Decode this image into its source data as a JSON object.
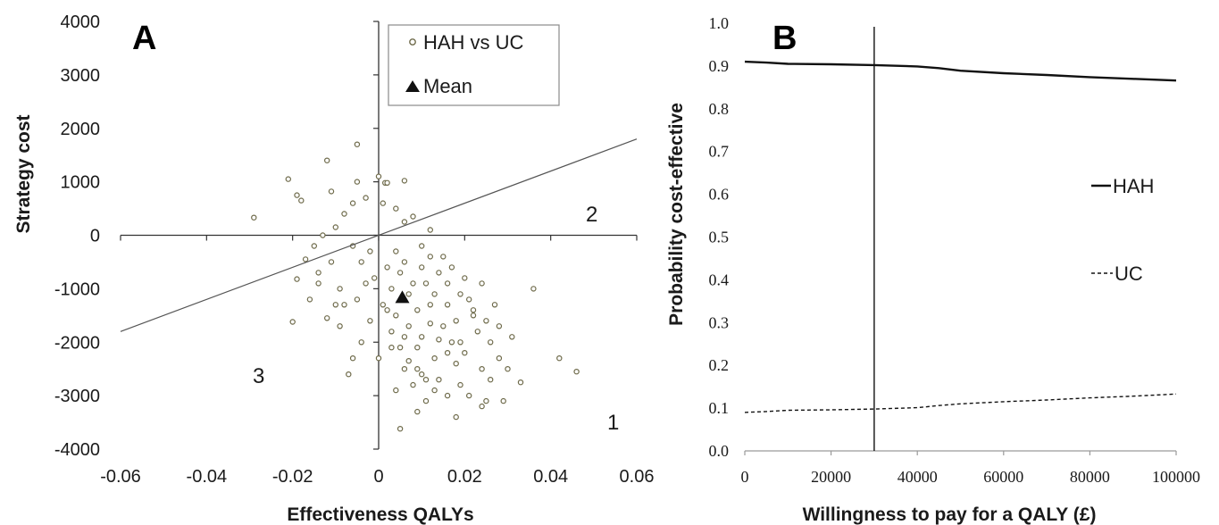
{
  "chart_data": [
    {
      "panel": "A",
      "type": "scatter",
      "xlabel": "Effectiveness QALYs",
      "ylabel": "Strategy cost",
      "xlim": [
        -0.06,
        0.06
      ],
      "ylim": [
        -4000,
        4000
      ],
      "xticks": [
        "-0.06",
        "-0.04",
        "-0.02",
        "0",
        "0.02",
        "0.04",
        "0.06"
      ],
      "yticks": [
        "4000",
        "3000",
        "2000",
        "1000",
        "0",
        "-1000",
        "-2000",
        "-3000",
        "-4000"
      ],
      "legend": {
        "scatter": "HAH vs UC",
        "mean": "Mean",
        "position": "top-right"
      },
      "mean": {
        "x": 0.0055,
        "y": -1150
      },
      "threshold_line": {
        "x1": -0.06,
        "y1": -1800,
        "x2": 0.06,
        "y2": 1800
      },
      "quadrant_labels": [
        "1",
        "2",
        "3"
      ],
      "series": [
        {
          "name": "HAH vs UC",
          "points": [
            [
              -0.029,
              330
            ],
            [
              -0.021,
              1050
            ],
            [
              -0.012,
              1400
            ],
            [
              -0.005,
              1700
            ],
            [
              -0.019,
              750
            ],
            [
              -0.018,
              650
            ],
            [
              -0.011,
              820
            ],
            [
              -0.005,
              1000
            ],
            [
              0.0,
              1100
            ],
            [
              0.0015,
              980
            ],
            [
              0.006,
              1020
            ],
            [
              0.002,
              980
            ],
            [
              -0.02,
              -1620
            ],
            [
              -0.019,
              -820
            ],
            [
              -0.016,
              -1200
            ],
            [
              -0.012,
              -1550
            ],
            [
              -0.017,
              -450
            ],
            [
              -0.014,
              -900
            ],
            [
              -0.01,
              -1300
            ],
            [
              -0.009,
              -1700
            ],
            [
              0.002,
              -1400
            ],
            [
              0.006,
              -1900
            ],
            [
              0.009,
              -2100
            ],
            [
              0.012,
              -1300
            ],
            [
              0.015,
              -1700
            ],
            [
              0.019,
              -2000
            ],
            [
              0.022,
              -1500
            ],
            [
              0.024,
              -2500
            ],
            [
              0.014,
              -2700
            ],
            [
              0.011,
              -3100
            ],
            [
              0.009,
              -3300
            ],
            [
              0.005,
              -3620
            ],
            [
              0.018,
              -3400
            ],
            [
              0.021,
              -3000
            ],
            [
              0.024,
              -3200
            ],
            [
              0.029,
              -3100
            ],
            [
              0.033,
              -2750
            ],
            [
              0.036,
              -1000
            ],
            [
              0.042,
              -2300
            ],
            [
              0.046,
              -2550
            ],
            [
              0.026,
              -2700
            ],
            [
              0.028,
              -1700
            ],
            [
              0.018,
              -2400
            ],
            [
              0.004,
              -2900
            ],
            [
              0.01,
              -2600
            ],
            [
              0.016,
              -3000
            ],
            [
              0.02,
              -2200
            ],
            [
              0.023,
              -1800
            ],
            [
              0.027,
              -1300
            ],
            [
              0.02,
              -800
            ],
            [
              0.017,
              -600
            ],
            [
              0.015,
              -400
            ],
            [
              0.01,
              -200
            ],
            [
              0.012,
              100
            ],
            [
              0.008,
              350
            ],
            [
              0.006,
              250
            ],
            [
              0.004,
              500
            ],
            [
              0.001,
              600
            ],
            [
              -0.003,
              700
            ],
            [
              -0.006,
              600
            ],
            [
              -0.008,
              400
            ],
            [
              -0.01,
              150
            ],
            [
              -0.013,
              0
            ],
            [
              -0.015,
              -200
            ],
            [
              -0.004,
              -500
            ],
            [
              -0.001,
              -800
            ],
            [
              0.003,
              -1000
            ],
            [
              0.005,
              -700
            ],
            [
              0.007,
              -1100
            ],
            [
              0.009,
              -1400
            ],
            [
              0.011,
              -900
            ],
            [
              0.013,
              -1100
            ],
            [
              0.016,
              -1300
            ],
            [
              0.018,
              -1600
            ],
            [
              0.021,
              -1200
            ],
            [
              0.024,
              -900
            ],
            [
              0.026,
              -2000
            ],
            [
              0.028,
              -2300
            ],
            [
              0.03,
              -2500
            ],
            [
              0.031,
              -1900
            ],
            [
              -0.002,
              -1600
            ],
            [
              -0.004,
              -2000
            ],
            [
              -0.006,
              -2300
            ],
            [
              -0.007,
              -2600
            ],
            [
              0.0,
              -2300
            ],
            [
              0.003,
              -2100
            ],
            [
              0.006,
              -2500
            ],
            [
              0.008,
              -2800
            ],
            [
              0.013,
              -2300
            ],
            [
              0.017,
              -2000
            ],
            [
              0.019,
              -2800
            ],
            [
              0.025,
              -3100
            ],
            [
              -0.009,
              -1000
            ],
            [
              -0.008,
              -1300
            ],
            [
              -0.005,
              -1200
            ],
            [
              -0.003,
              -900
            ],
            [
              0.001,
              -1300
            ],
            [
              0.004,
              -1500
            ],
            [
              0.007,
              -1700
            ],
            [
              0.01,
              -1900
            ],
            [
              0.012,
              -1650
            ],
            [
              0.014,
              -1950
            ],
            [
              0.016,
              -2200
            ],
            [
              0.002,
              -600
            ],
            [
              0.004,
              -300
            ],
            [
              0.006,
              -500
            ],
            [
              -0.002,
              -300
            ],
            [
              -0.006,
              -200
            ],
            [
              -0.011,
              -500
            ],
            [
              -0.014,
              -700
            ],
            [
              0.008,
              -900
            ],
            [
              0.01,
              -600
            ],
            [
              0.012,
              -400
            ],
            [
              0.014,
              -700
            ],
            [
              0.016,
              -900
            ],
            [
              0.019,
              -1100
            ],
            [
              0.022,
              -1400
            ],
            [
              0.025,
              -1600
            ],
            [
              0.003,
              -1800
            ],
            [
              0.005,
              -2100
            ],
            [
              0.007,
              -2350
            ],
            [
              0.009,
              -2500
            ],
            [
              0.011,
              -2700
            ],
            [
              0.013,
              -2900
            ]
          ]
        }
      ]
    },
    {
      "panel": "B",
      "type": "line",
      "xlabel": "Willingness to pay for a QALY (£)",
      "ylabel": "Probability cost-effective",
      "xlim": [
        0,
        100000
      ],
      "ylim": [
        0,
        1.0
      ],
      "xticks": [
        "0",
        "20000",
        "40000",
        "60000",
        "80000",
        "100000"
      ],
      "yticks": [
        "1.0",
        "0.9",
        "0.8",
        "0.7",
        "0.6",
        "0.5",
        "0.4",
        "0.3",
        "0.2",
        "0.1",
        "0.0"
      ],
      "vline_x": 30000,
      "series": [
        {
          "name": "HAH",
          "style": "solid",
          "x": [
            0,
            5000,
            10000,
            20000,
            30000,
            40000,
            45000,
            50000,
            60000,
            70000,
            80000,
            90000,
            100000
          ],
          "y": [
            0.91,
            0.908,
            0.905,
            0.904,
            0.902,
            0.899,
            0.895,
            0.889,
            0.883,
            0.879,
            0.874,
            0.87,
            0.866
          ]
        },
        {
          "name": "UC",
          "style": "dashed",
          "x": [
            0,
            5000,
            10000,
            20000,
            30000,
            40000,
            45000,
            50000,
            60000,
            70000,
            80000,
            90000,
            100000
          ],
          "y": [
            0.09,
            0.092,
            0.095,
            0.096,
            0.098,
            0.101,
            0.106,
            0.11,
            0.115,
            0.119,
            0.124,
            0.128,
            0.133
          ]
        }
      ]
    }
  ]
}
